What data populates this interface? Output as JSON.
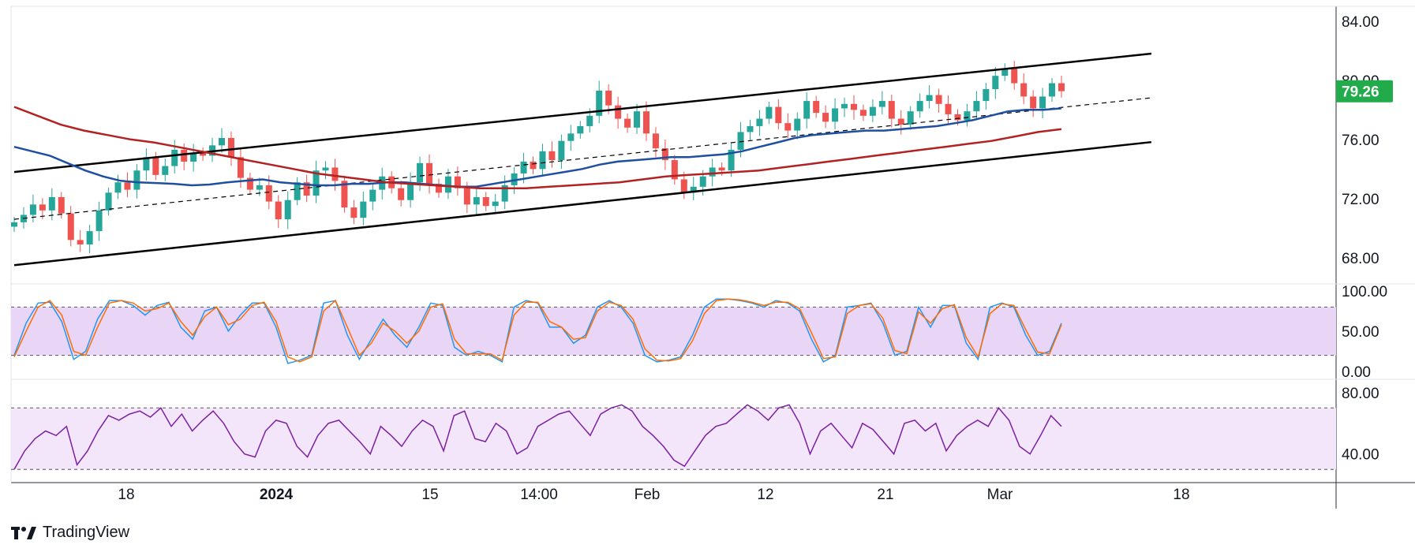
{
  "chart_data": [
    {
      "type": "candlestick",
      "title": "",
      "ylim": [
        66.5,
        85.0
      ],
      "yticks": [
        "84.00",
        "80.00",
        "76.00",
        "72.00",
        "68.00"
      ],
      "ytick_values": [
        84,
        80,
        76,
        72,
        68
      ],
      "xticks": [
        {
          "label": "18",
          "bold": false
        },
        {
          "label": "2024",
          "bold": true
        },
        {
          "label": "15",
          "bold": false
        },
        {
          "label": "14:00",
          "bold": false
        },
        {
          "label": "Feb",
          "bold": false
        },
        {
          "label": "12",
          "bold": false
        },
        {
          "label": "21",
          "bold": false
        },
        {
          "label": "Mar",
          "bold": false
        },
        {
          "label": "18",
          "bold": false
        }
      ],
      "last_price": "79.26",
      "colors": {
        "up": "#26a69a",
        "down": "#ef5350",
        "ma_fast": "#1e4fa0",
        "ma_slow": "#b22222",
        "channel": "#000000",
        "price_tag": "#22ab4a"
      },
      "close_series": [
        70.4,
        70.9,
        71.6,
        71.2,
        72.1,
        71.0,
        69.2,
        68.9,
        69.8,
        71.2,
        72.4,
        73.1,
        72.6,
        73.9,
        74.8,
        73.6,
        74.2,
        75.3,
        74.5,
        75.1,
        74.9,
        75.6,
        76.1,
        74.8,
        73.4,
        72.6,
        72.9,
        71.8,
        70.6,
        71.9,
        73.1,
        72.2,
        73.9,
        74.1,
        73.2,
        71.4,
        70.7,
        71.8,
        72.6,
        73.5,
        72.7,
        71.9,
        73.1,
        74.4,
        73.0,
        72.4,
        73.5,
        72.7,
        71.6,
        72.1,
        71.5,
        71.8,
        72.9,
        73.7,
        74.5,
        74.0,
        75.2,
        74.6,
        75.9,
        76.4,
        76.9,
        77.6,
        79.3,
        78.3,
        77.4,
        76.8,
        77.9,
        76.4,
        75.4,
        74.6,
        73.3,
        72.4,
        72.8,
        73.5,
        74.1,
        73.9,
        75.3,
        76.5,
        76.9,
        77.4,
        78.2,
        77.1,
        76.6,
        77.4,
        78.6,
        77.8,
        77.2,
        78.1,
        78.4,
        78.0,
        77.6,
        78.2,
        78.6,
        77.4,
        77.0,
        77.9,
        78.6,
        79.0,
        78.4,
        77.7,
        77.3,
        77.9,
        78.6,
        79.4,
        80.3,
        80.8,
        79.8,
        78.9,
        78.1,
        78.9,
        79.8,
        79.26
      ],
      "series": [
        {
          "name": "",
          "kind": "channel-upper",
          "points": [
            [
              0,
              73.8
            ],
            [
              113,
              81.3
            ]
          ]
        },
        {
          "name": "",
          "kind": "channel-mid",
          "points": [
            [
              0,
              70.6
            ],
            [
              113,
              78.3
            ]
          ]
        },
        {
          "name": "",
          "kind": "channel-lower",
          "points": [
            [
              0,
              67.5
            ],
            [
              113,
              75.3
            ]
          ]
        },
        {
          "name": "",
          "kind": "ma-fast",
          "values": [
            75.5,
            75.2,
            74.9,
            74.4,
            73.9,
            73.5,
            73.2,
            73.1,
            73.05,
            73.0,
            72.9,
            72.95,
            73.1,
            73.2,
            73.3,
            73.1,
            73.0,
            72.9,
            72.9,
            73.0,
            73.0,
            73.1,
            73.1,
            73.0,
            72.9,
            72.8,
            72.8,
            73.0,
            73.2,
            73.4,
            73.6,
            73.8,
            74.0,
            74.3,
            74.5,
            74.6,
            74.7,
            74.8,
            74.8,
            74.9,
            75.0,
            75.2,
            75.5,
            75.8,
            76.1,
            76.3,
            76.4,
            76.5,
            76.6,
            76.6,
            76.7,
            76.8,
            76.9,
            77.1,
            77.3,
            77.6,
            77.9,
            78.0,
            78.0,
            78.1
          ]
        },
        {
          "name": "",
          "kind": "ma-slow",
          "values": [
            78.2,
            77.6,
            77.0,
            76.6,
            76.3,
            76.0,
            75.8,
            75.5,
            75.2,
            74.9,
            74.6,
            74.3,
            74.0,
            73.7,
            73.5,
            73.3,
            73.1,
            73.0,
            72.9,
            72.8,
            72.7,
            72.7,
            72.7,
            72.8,
            72.9,
            73.0,
            73.1,
            73.3,
            73.5,
            73.6,
            73.7,
            73.8,
            73.9,
            74.1,
            74.3,
            74.5,
            74.7,
            74.9,
            75.1,
            75.3,
            75.5,
            75.7,
            75.9,
            76.2,
            76.5,
            76.7
          ]
        }
      ]
    },
    {
      "type": "line",
      "title": "",
      "ylim": [
        0,
        100
      ],
      "yticks": [
        "100.00",
        "50.00",
        "0.00"
      ],
      "ytick_values": [
        100,
        50,
        0
      ],
      "band": [
        20,
        80
      ],
      "series": [
        {
          "name": "",
          "color": "#2196f3",
          "values": [
            20,
            60,
            85,
            86,
            62,
            15,
            25,
            65,
            88,
            88,
            82,
            70,
            82,
            86,
            55,
            40,
            75,
            80,
            50,
            70,
            85,
            85,
            55,
            10,
            14,
            20,
            85,
            88,
            45,
            15,
            40,
            65,
            45,
            30,
            55,
            85,
            82,
            30,
            20,
            25,
            20,
            12,
            80,
            88,
            85,
            55,
            55,
            35,
            45,
            80,
            88,
            80,
            60,
            20,
            12,
            14,
            18,
            45,
            80,
            90,
            90,
            88,
            85,
            80,
            88,
            85,
            75,
            40,
            12,
            20,
            80,
            82,
            85,
            60,
            20,
            25,
            80,
            55,
            82,
            82,
            35,
            15,
            80,
            85,
            80,
            45,
            20,
            25,
            60
          ]
        },
        {
          "name": "",
          "color": "#ff6d00",
          "values": [
            18,
            50,
            80,
            88,
            70,
            25,
            20,
            55,
            85,
            88,
            85,
            75,
            78,
            85,
            62,
            45,
            68,
            80,
            58,
            65,
            82,
            86,
            62,
            18,
            12,
            18,
            75,
            88,
            55,
            20,
            35,
            60,
            50,
            35,
            50,
            80,
            84,
            40,
            22,
            22,
            22,
            14,
            70,
            86,
            86,
            62,
            55,
            40,
            42,
            75,
            86,
            82,
            65,
            28,
            14,
            13,
            16,
            38,
            72,
            88,
            90,
            89,
            86,
            82,
            86,
            86,
            78,
            48,
            16,
            18,
            72,
            82,
            84,
            66,
            26,
            22,
            74,
            60,
            78,
            83,
            42,
            18,
            72,
            84,
            82,
            52,
            24,
            22,
            58
          ]
        }
      ]
    },
    {
      "type": "line",
      "title": "",
      "ylim": [
        26,
        84
      ],
      "yticks": [
        "80.00",
        "40.00"
      ],
      "ytick_values": [
        80,
        40
      ],
      "band": [
        30,
        70
      ],
      "series": [
        {
          "name": "",
          "color": "#7b1fa2",
          "values": [
            30,
            42,
            50,
            55,
            52,
            58,
            33,
            42,
            55,
            65,
            62,
            66,
            68,
            64,
            70,
            58,
            66,
            55,
            62,
            68,
            60,
            48,
            40,
            38,
            55,
            62,
            60,
            45,
            38,
            52,
            60,
            62,
            55,
            48,
            40,
            58,
            52,
            45,
            55,
            62,
            58,
            42,
            65,
            68,
            50,
            48,
            60,
            55,
            40,
            44,
            58,
            62,
            66,
            68,
            60,
            52,
            66,
            70,
            72,
            68,
            58,
            52,
            45,
            36,
            32,
            42,
            52,
            58,
            60,
            66,
            72,
            68,
            62,
            70,
            72,
            60,
            40,
            55,
            60,
            52,
            44,
            60,
            56,
            48,
            40,
            60,
            62,
            55,
            60,
            42,
            52,
            58,
            62,
            58,
            70,
            62,
            45,
            40,
            52,
            65,
            58
          ]
        }
      ]
    }
  ],
  "brand": {
    "name": "TradingView"
  }
}
